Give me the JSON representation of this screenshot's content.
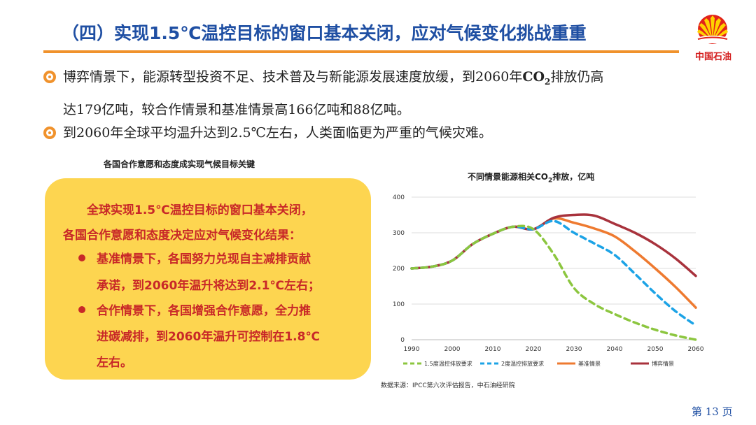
{
  "header": {
    "title": "（四）实现1.5℃温控目标的窗口基本关闭，应对气候变化挑战重重",
    "logo_text": "中国石油"
  },
  "bullets": [
    {
      "line1_pre": "博弈情景下，能源转型投资不足、技术普及与新能源发展速度放缓，到2060年",
      "co2_main": "CO",
      "co2_sub": "2",
      "line1_post": "排放仍高",
      "line2": "达179亿吨，较合作情景和基准情景高166亿吨和88亿吨。"
    },
    {
      "line1_pre": "到2060年全球平均温升达到2.5℃左右，人类面临更为严重的气候灾难。"
    }
  ],
  "left_panel": {
    "caption": "各国合作意愿和态度成实现气候目标关键",
    "lines": [
      "全球实现1.5℃温控目标的窗口基本关闭，",
      "各国合作意愿和态度决定应对气候变化结果：",
      "基准情景下，各国努力兑现自主减排贡献",
      "承诺，到2060年温升将达到2.1℃左右；",
      "合作情景下，各国增强合作意愿，全力推",
      "进碳减排，到2060年温升可控制在1.8℃",
      "左右。"
    ]
  },
  "chart_data": {
    "type": "line",
    "title_pre": "不同情景能源相关CO",
    "title_sub": "2",
    "title_post": "排放，亿吨",
    "x": [
      1990,
      1995,
      2000,
      2005,
      2010,
      2015,
      2020,
      2025,
      2030,
      2035,
      2040,
      2045,
      2050,
      2055,
      2060
    ],
    "xticks": [
      1990,
      2000,
      2010,
      2020,
      2030,
      2040,
      2050,
      2060
    ],
    "yticks": [
      0,
      100,
      200,
      300,
      400
    ],
    "ylim": [
      0,
      400
    ],
    "xlim": [
      1990,
      2060
    ],
    "grid": true,
    "legend_position": "bottom",
    "series": [
      {
        "name": "1.5度温控排放要求",
        "color": "#8cc63f",
        "dash": "8,6",
        "values": [
          200,
          205,
          222,
          268,
          297,
          317,
          310,
          240,
          145,
          100,
          72,
          48,
          28,
          12,
          0
        ]
      },
      {
        "name": "2度温控排放要求",
        "color": "#1ca3e6",
        "dash": "8,6",
        "values": [
          200,
          205,
          222,
          268,
          297,
          317,
          310,
          333,
          300,
          270,
          238,
          185,
          130,
          80,
          40
        ]
      },
      {
        "name": "基准情景",
        "color": "#ee7a30",
        "dash": "",
        "values": [
          200,
          205,
          222,
          268,
          297,
          317,
          310,
          340,
          328,
          312,
          290,
          248,
          200,
          148,
          90
        ]
      },
      {
        "name": "博弈情景",
        "color": "#a8323c",
        "dash": "",
        "values": [
          200,
          205,
          222,
          268,
          297,
          317,
          310,
          342,
          350,
          348,
          325,
          300,
          268,
          228,
          179
        ]
      }
    ]
  },
  "source_text": "数据来源：IPCC第六次评估报告，中石油经研院",
  "page_number": "第 13 页"
}
